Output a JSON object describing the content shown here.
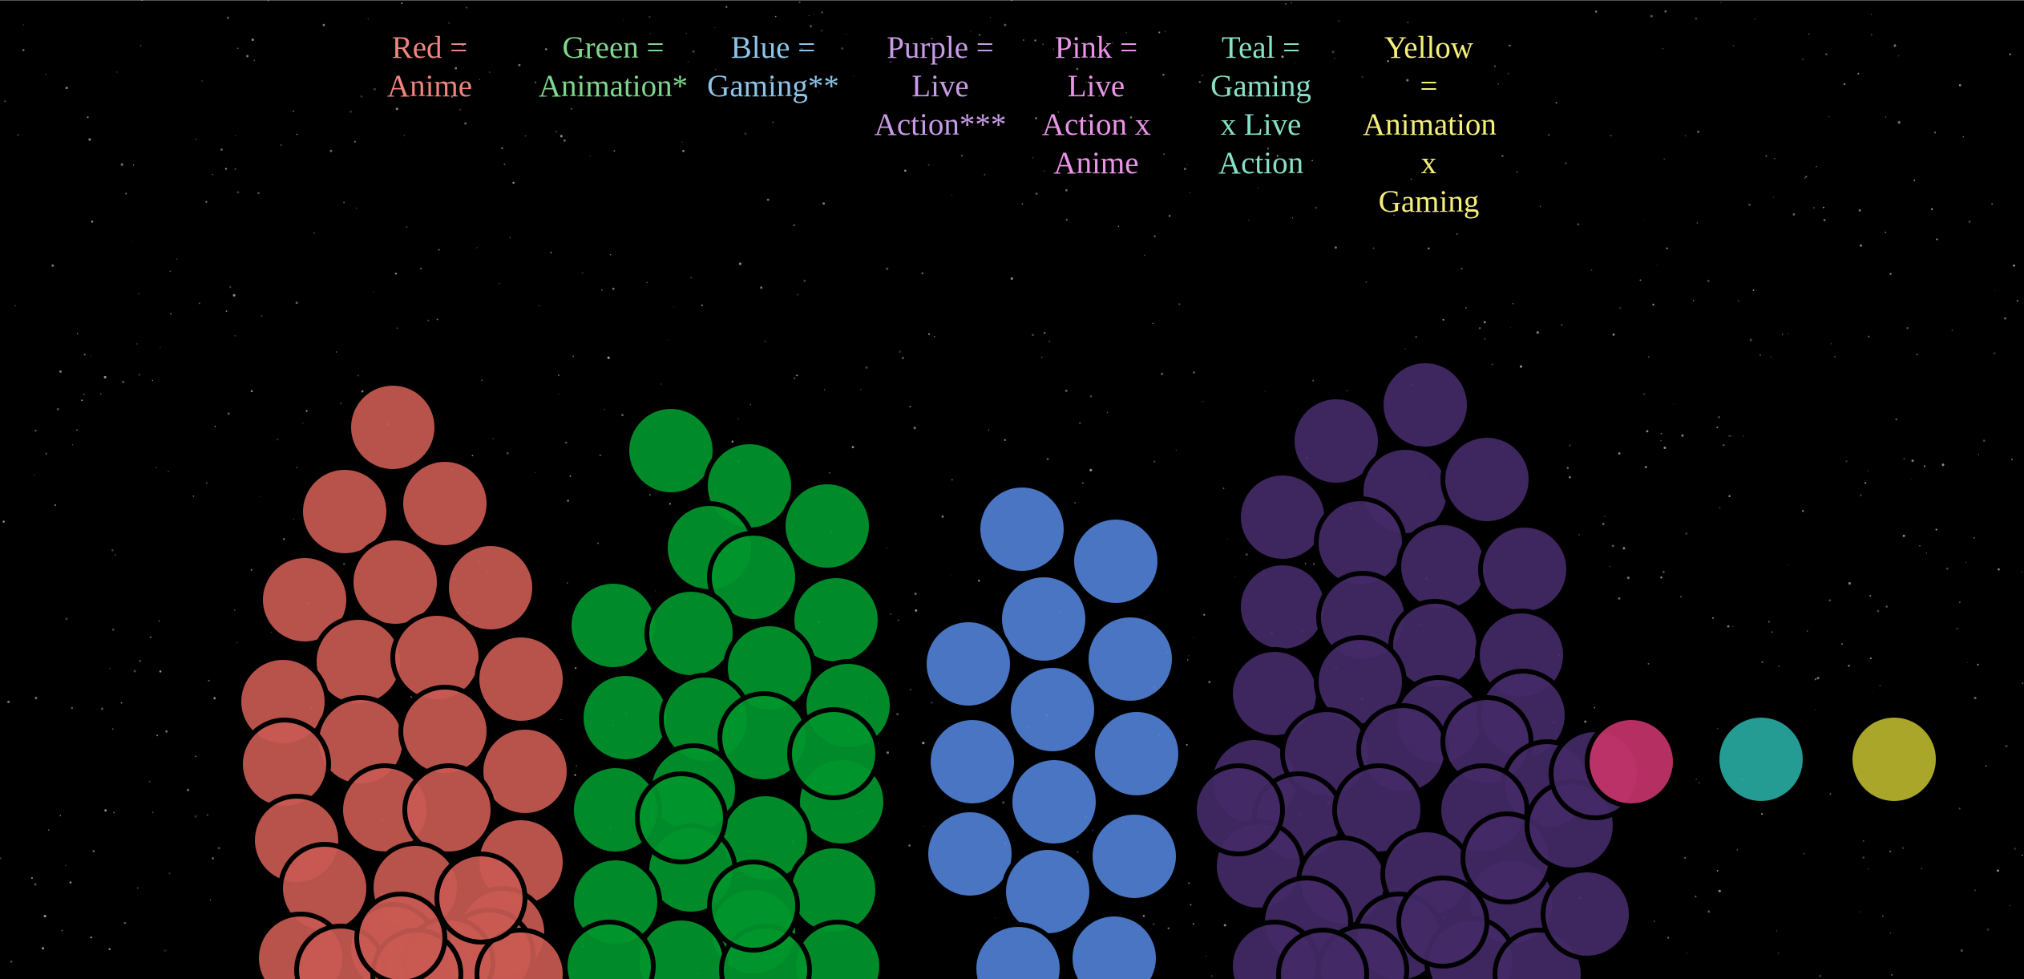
{
  "colors": {
    "background": "#000000",
    "outline": "#000000",
    "Anime": "#c85a52",
    "Animation": "#00962c",
    "Gaming": "#4f7fd3",
    "Live Action": "#432966",
    "Live Action x Anime": "#c5336a",
    "Gaming x Live Action": "#27a89f",
    "Animation x Gaming": "#b7b42c"
  },
  "legend": [
    {
      "text": "Red =\nAnime",
      "color": "#f0847e"
    },
    {
      "text": "Green =\nAnimation*",
      "color": "#7fd68c"
    },
    {
      "text": "Blue =\nGaming**",
      "color": "#8dc4ea"
    },
    {
      "text": "Purple =\nLive\nAction***",
      "color": "#c99be6"
    },
    {
      "text": "Pink =\nLive\nAction x\nAnime",
      "color": "#e994e6"
    },
    {
      "text": "Teal =\nGaming\nx Live\nAction",
      "color": "#86e1c6"
    },
    {
      "text": "Yellow\n=\nAnimation\nx\nGaming",
      "color": "#f4ee7a"
    }
  ],
  "chart_data": {
    "type": "scatter",
    "description_type": "bubble cluster (one circle per item, grouped by category)",
    "grid": false,
    "series": [
      {
        "name": "Anime",
        "count": 30
      },
      {
        "name": "Animation",
        "count": 28
      },
      {
        "name": "Gaming",
        "count": 14
      },
      {
        "name": "Live Action",
        "count": 41
      },
      {
        "name": "Live Action x Anime",
        "count": 1
      },
      {
        "name": "Gaming x Live Action",
        "count": 1
      },
      {
        "name": "Animation x Gaming",
        "count": 1
      }
    ]
  }
}
